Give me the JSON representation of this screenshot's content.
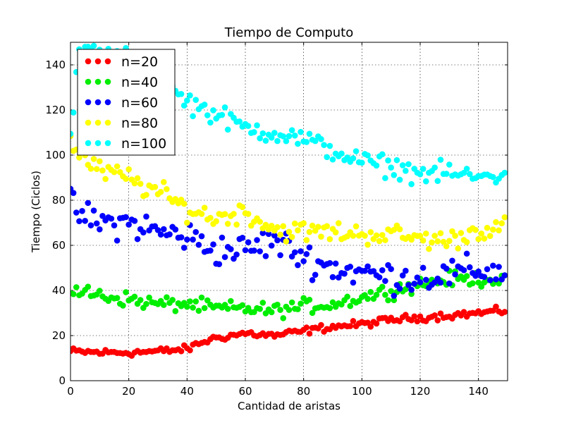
{
  "chart_data": {
    "type": "scatter",
    "title": "Tiempo de Computo",
    "xlabel": "Cantidad de aristas",
    "ylabel": "Tiempo (Ciclos)",
    "xlim": [
      0,
      150
    ],
    "ylim": [
      0,
      150
    ],
    "xticks": [
      0,
      20,
      40,
      60,
      80,
      100,
      120,
      140
    ],
    "yticks": [
      0,
      20,
      40,
      60,
      80,
      100,
      120,
      140
    ],
    "grid": true,
    "legend_position": "top-left",
    "series": [
      {
        "name": "n=20",
        "color": "#ff0000",
        "trend": [
          [
            0,
            13
          ],
          [
            10,
            12.5
          ],
          [
            20,
            12.5
          ],
          [
            30,
            13
          ],
          [
            40,
            14
          ],
          [
            45,
            17
          ],
          [
            50,
            19
          ],
          [
            55,
            20
          ],
          [
            60,
            21
          ],
          [
            70,
            20
          ],
          [
            80,
            22
          ],
          [
            90,
            24
          ],
          [
            100,
            25
          ],
          [
            110,
            27
          ],
          [
            120,
            28
          ],
          [
            130,
            29
          ],
          [
            140,
            30
          ],
          [
            149,
            31
          ]
        ],
        "noise": 1.4
      },
      {
        "name": "n=40",
        "color": "#00ee00",
        "trend": [
          [
            0,
            40
          ],
          [
            10,
            38
          ],
          [
            20,
            36
          ],
          [
            30,
            34
          ],
          [
            40,
            34
          ],
          [
            50,
            32
          ],
          [
            60,
            32
          ],
          [
            70,
            31
          ],
          [
            80,
            33
          ],
          [
            90,
            34
          ],
          [
            100,
            37
          ],
          [
            110,
            40
          ],
          [
            120,
            43
          ],
          [
            130,
            45
          ],
          [
            140,
            45
          ],
          [
            149,
            45
          ]
        ],
        "noise": 2.8
      },
      {
        "name": "n=60",
        "color": "#0000ff",
        "trend": [
          [
            0,
            78
          ],
          [
            5,
            72
          ],
          [
            10,
            70
          ],
          [
            20,
            70
          ],
          [
            30,
            66
          ],
          [
            40,
            64
          ],
          [
            50,
            58
          ],
          [
            60,
            58
          ],
          [
            70,
            62
          ],
          [
            80,
            55
          ],
          [
            90,
            50
          ],
          [
            100,
            48
          ],
          [
            110,
            46
          ],
          [
            120,
            46
          ],
          [
            130,
            47
          ],
          [
            140,
            49
          ],
          [
            149,
            48
          ]
        ],
        "noise": 6
      },
      {
        "name": "n=80",
        "color": "#ffff00",
        "trend": [
          [
            0,
            106
          ],
          [
            5,
            98
          ],
          [
            10,
            93
          ],
          [
            20,
            90
          ],
          [
            25,
            86
          ],
          [
            30,
            84
          ],
          [
            40,
            76
          ],
          [
            50,
            72
          ],
          [
            60,
            75
          ],
          [
            70,
            67
          ],
          [
            80,
            66
          ],
          [
            90,
            66
          ],
          [
            100,
            65
          ],
          [
            110,
            65
          ],
          [
            120,
            63
          ],
          [
            130,
            62
          ],
          [
            140,
            67
          ],
          [
            149,
            68
          ]
        ],
        "noise": 4
      },
      {
        "name": "n=100",
        "color": "#00ffff",
        "trend": [
          [
            0,
            108
          ],
          [
            3,
            148
          ],
          [
            10,
            145
          ],
          [
            20,
            142
          ],
          [
            30,
            132
          ],
          [
            40,
            124
          ],
          [
            50,
            118
          ],
          [
            60,
            112
          ],
          [
            70,
            110
          ],
          [
            80,
            107
          ],
          [
            90,
            102
          ],
          [
            100,
            97
          ],
          [
            110,
            95
          ],
          [
            120,
            92
          ],
          [
            130,
            92
          ],
          [
            140,
            90
          ],
          [
            149,
            92
          ]
        ],
        "noise": 4
      }
    ]
  }
}
